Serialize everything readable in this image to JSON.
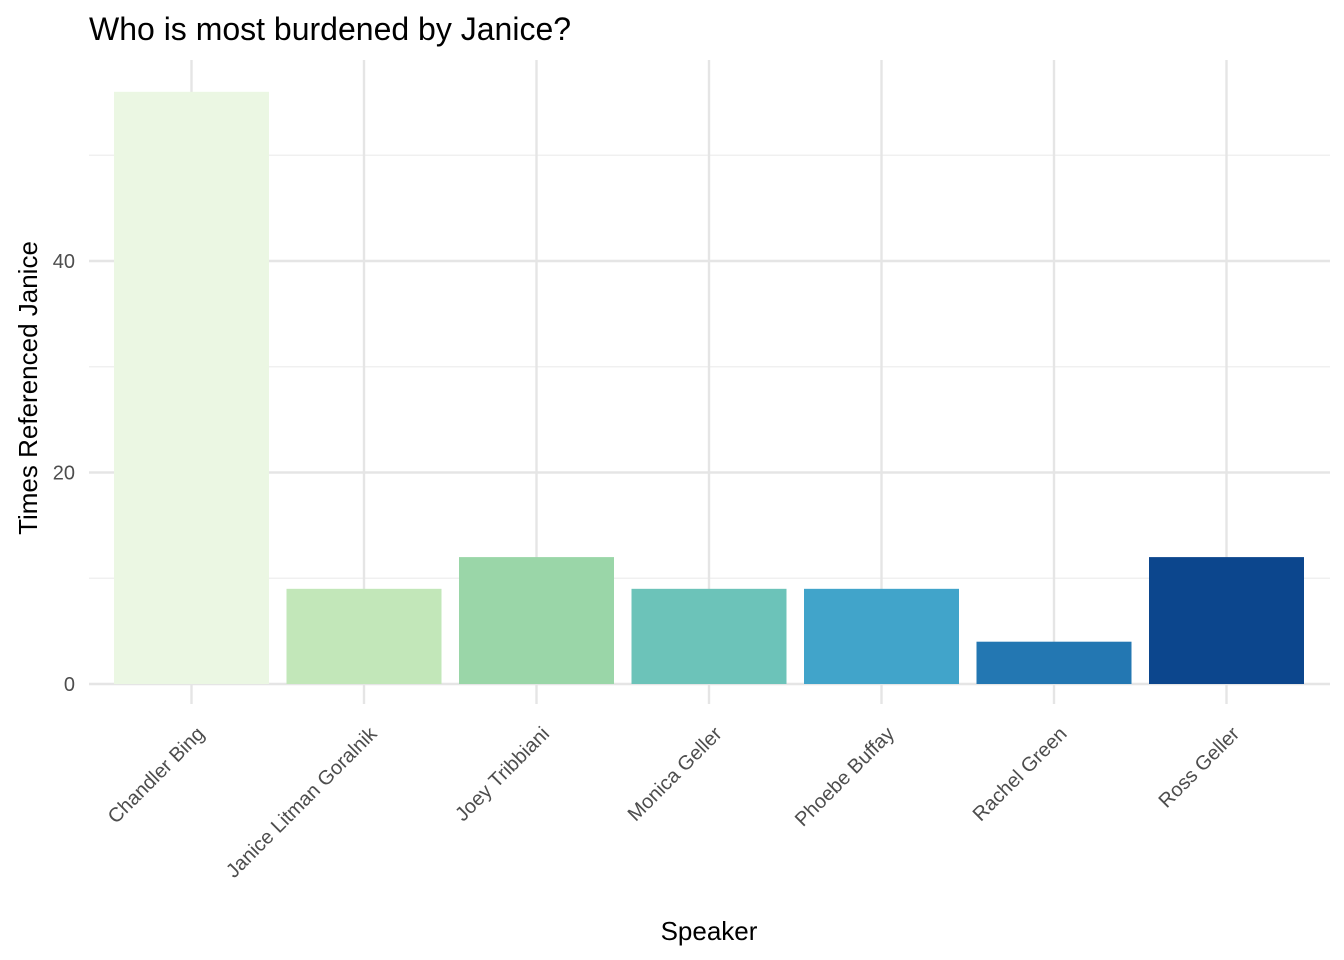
{
  "chart_data": {
    "type": "bar",
    "title": "Who is most burdened by Janice?",
    "xlabel": "Speaker",
    "ylabel": "Times Referenced Janice",
    "categories": [
      "Chandler Bing",
      "Janice Litman Goralnik",
      "Joey Tribbiani",
      "Monica Geller",
      "Phoebe Buffay",
      "Rachel Green",
      "Ross Geller"
    ],
    "values": [
      56,
      9,
      12,
      9,
      9,
      4,
      12
    ],
    "colors": [
      "#EBF7E3",
      "#C2E7B9",
      "#9AD6A8",
      "#6CC3B9",
      "#41A4CA",
      "#2377B2",
      "#0C468D"
    ],
    "ylim": [
      0,
      58
    ],
    "yticks": [
      0,
      20,
      40
    ],
    "grid": true,
    "legend": "none"
  }
}
